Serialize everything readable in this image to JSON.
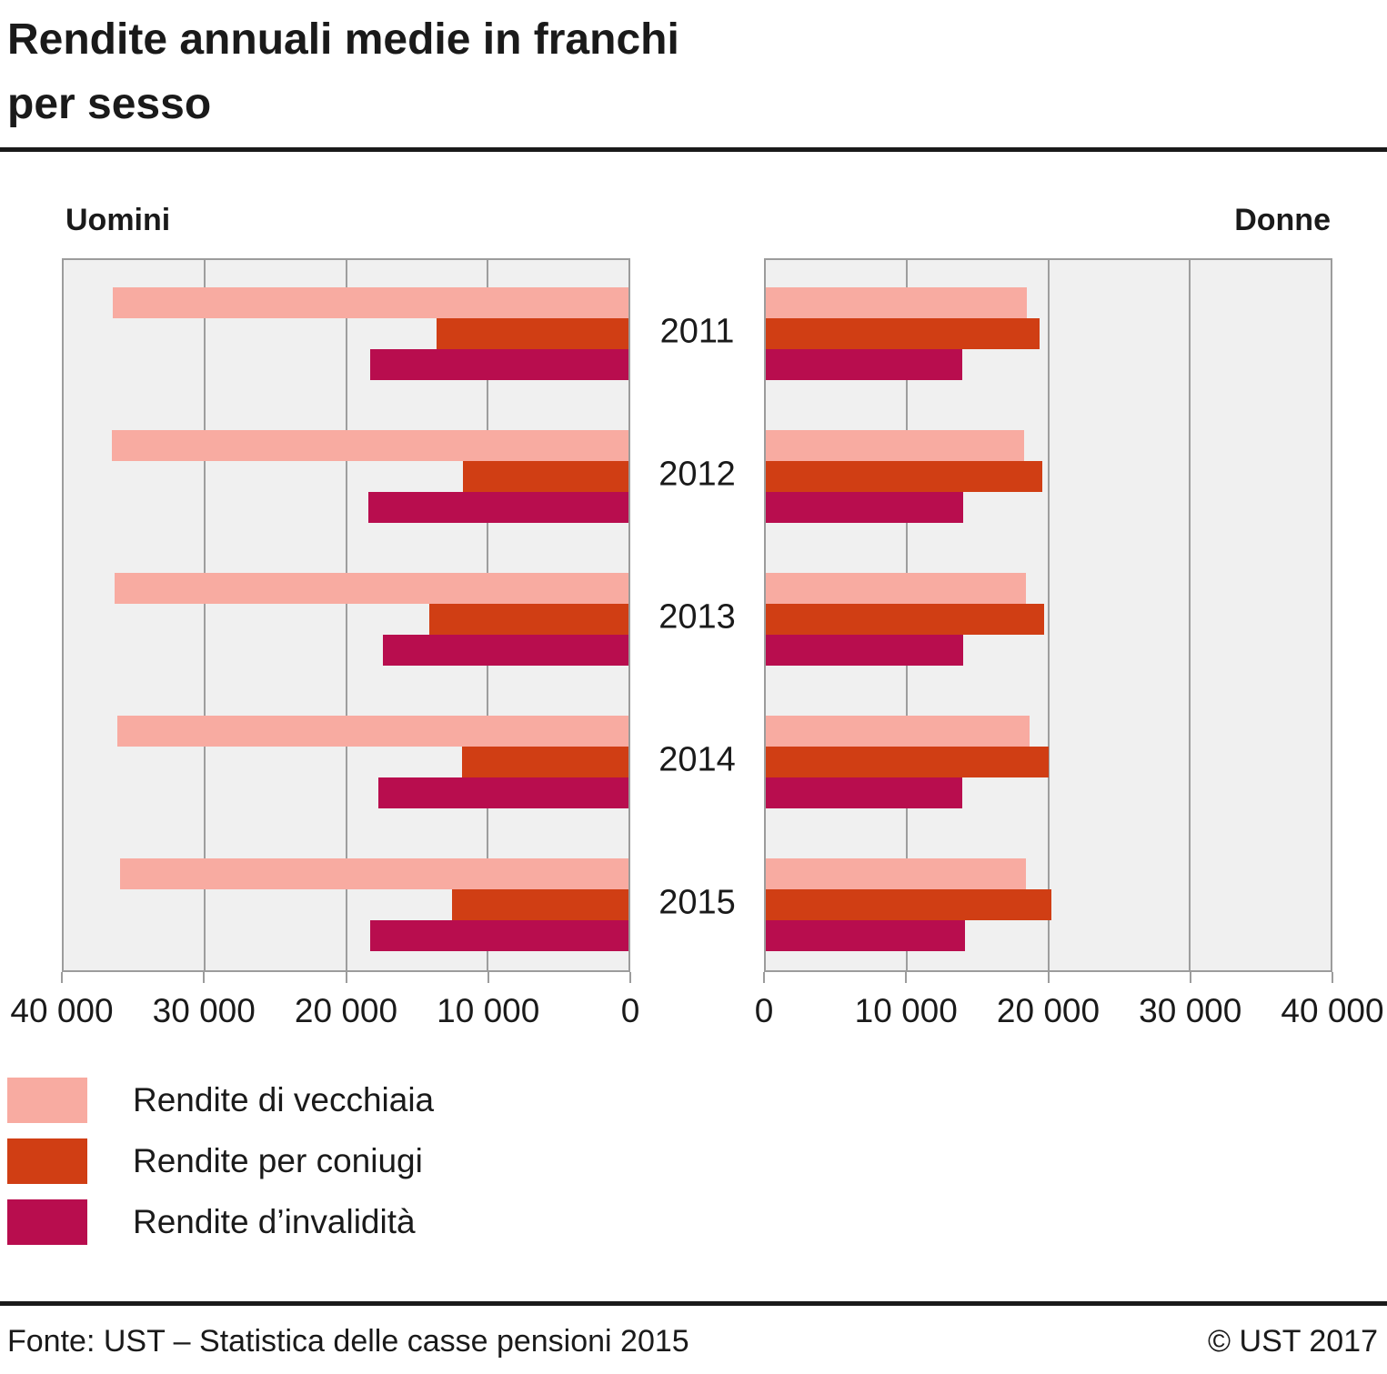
{
  "title": {
    "line1": "Rendite annuali medie in franchi",
    "line2": "per sesso"
  },
  "panels": {
    "left_label": "Uomini",
    "right_label": "Donne"
  },
  "legend": [
    {
      "label": "Rendite di vecchiaia",
      "color": "#f8aba1"
    },
    {
      "label": "Rendite per coniugi",
      "color": "#d03e14"
    },
    {
      "label": "Rendite d’invalidità",
      "color": "#b80d4e"
    }
  ],
  "footer": {
    "source": "Fonte: UST – Statistica delle casse pensioni 2015",
    "copyright": "© UST 2017"
  },
  "chart_data": {
    "type": "bar",
    "orientation": "horizontal",
    "title": "Rendite annuali medie in franchi per sesso",
    "categories": [
      "2011",
      "2012",
      "2013",
      "2014",
      "2015"
    ],
    "axis": {
      "min": 0,
      "max": 40000,
      "tick_step": 10000,
      "grid": true,
      "ticks_left_panel": [
        "40 000",
        "30 000",
        "20 000",
        "10 000",
        "0"
      ],
      "ticks_right_panel": [
        "0",
        "10 000",
        "20 000",
        "30 000",
        "40 000"
      ]
    },
    "panels": [
      {
        "name": "Uomini",
        "direction": "right-to-left",
        "series": [
          {
            "name": "Rendite di vecchiaia",
            "values": [
              36500,
              36600,
              36400,
              36200,
              36000
            ]
          },
          {
            "name": "Rendite per coniugi",
            "values": [
              13600,
              11700,
              14100,
              11800,
              12500
            ]
          },
          {
            "name": "Rendite d’invalidità",
            "values": [
              18300,
              18400,
              17400,
              17700,
              18300
            ]
          }
        ]
      },
      {
        "name": "Donne",
        "direction": "left-to-right",
        "series": [
          {
            "name": "Rendite di vecchiaia",
            "values": [
              18500,
              18300,
              18400,
              18700,
              18400
            ]
          },
          {
            "name": "Rendite per coniugi",
            "values": [
              19400,
              19600,
              19700,
              20000,
              20200
            ]
          },
          {
            "name": "Rendite d’invalidità",
            "values": [
              13900,
              14000,
              14000,
              13900,
              14100
            ]
          }
        ]
      }
    ],
    "legend_position": "bottom-left"
  }
}
